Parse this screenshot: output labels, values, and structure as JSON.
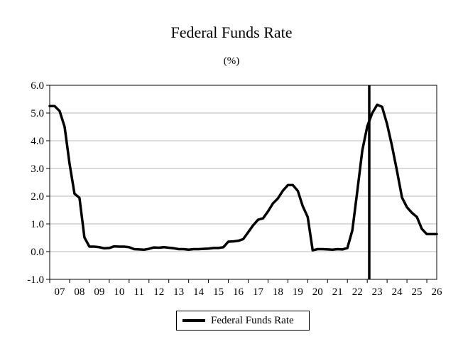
{
  "chart_data": {
    "type": "line",
    "title": "Federal Funds Rate",
    "subtitle": "(%)",
    "xlabel": "",
    "ylabel": "",
    "ylim": [
      -1.0,
      6.0
    ],
    "y_ticks": [
      "-1.0",
      "0.0",
      "1.0",
      "2.0",
      "3.0",
      "4.0",
      "5.0",
      "6.0"
    ],
    "x_ticks": [
      "07",
      "08",
      "09",
      "10",
      "11",
      "12",
      "13",
      "14",
      "15",
      "16",
      "17",
      "18",
      "19",
      "20",
      "21",
      "22",
      "23",
      "24",
      "25",
      "26"
    ],
    "xlim": [
      2007.0,
      2026.5
    ],
    "grid": "horizontal",
    "legend_position": "bottom-center",
    "vertical_marker_x": 2023.1,
    "series": [
      {
        "name": "Federal Funds Rate",
        "color": "#000000",
        "points": [
          [
            2007.0,
            5.25
          ],
          [
            2007.25,
            5.25
          ],
          [
            2007.5,
            5.07
          ],
          [
            2007.75,
            4.5
          ],
          [
            2008.0,
            3.18
          ],
          [
            2008.25,
            2.09
          ],
          [
            2008.5,
            1.94
          ],
          [
            2008.75,
            0.51
          ],
          [
            2009.0,
            0.18
          ],
          [
            2009.25,
            0.18
          ],
          [
            2009.5,
            0.16
          ],
          [
            2009.75,
            0.12
          ],
          [
            2010.0,
            0.13
          ],
          [
            2010.25,
            0.19
          ],
          [
            2010.5,
            0.18
          ],
          [
            2010.75,
            0.18
          ],
          [
            2011.0,
            0.16
          ],
          [
            2011.25,
            0.09
          ],
          [
            2011.5,
            0.08
          ],
          [
            2011.75,
            0.07
          ],
          [
            2012.0,
            0.1
          ],
          [
            2012.25,
            0.15
          ],
          [
            2012.5,
            0.14
          ],
          [
            2012.75,
            0.16
          ],
          [
            2013.0,
            0.14
          ],
          [
            2013.25,
            0.12
          ],
          [
            2013.5,
            0.09
          ],
          [
            2013.75,
            0.09
          ],
          [
            2014.0,
            0.07
          ],
          [
            2014.25,
            0.09
          ],
          [
            2014.5,
            0.09
          ],
          [
            2014.75,
            0.1
          ],
          [
            2015.0,
            0.11
          ],
          [
            2015.25,
            0.13
          ],
          [
            2015.5,
            0.13
          ],
          [
            2015.75,
            0.16
          ],
          [
            2016.0,
            0.36
          ],
          [
            2016.25,
            0.37
          ],
          [
            2016.5,
            0.39
          ],
          [
            2016.75,
            0.45
          ],
          [
            2017.0,
            0.7
          ],
          [
            2017.25,
            0.95
          ],
          [
            2017.5,
            1.15
          ],
          [
            2017.75,
            1.2
          ],
          [
            2018.0,
            1.45
          ],
          [
            2018.25,
            1.74
          ],
          [
            2018.5,
            1.92
          ],
          [
            2018.75,
            2.2
          ],
          [
            2019.0,
            2.4
          ],
          [
            2019.25,
            2.4
          ],
          [
            2019.5,
            2.19
          ],
          [
            2019.75,
            1.64
          ],
          [
            2020.0,
            1.25
          ],
          [
            2020.25,
            0.05
          ],
          [
            2020.5,
            0.09
          ],
          [
            2020.75,
            0.09
          ],
          [
            2021.0,
            0.08
          ],
          [
            2021.25,
            0.07
          ],
          [
            2021.5,
            0.09
          ],
          [
            2021.75,
            0.08
          ],
          [
            2022.0,
            0.13
          ],
          [
            2022.25,
            0.77
          ],
          [
            2022.5,
            2.19
          ],
          [
            2022.75,
            3.65
          ],
          [
            2023.0,
            4.52
          ],
          [
            2023.25,
            5.0
          ],
          [
            2023.5,
            5.3
          ],
          [
            2023.75,
            5.22
          ],
          [
            2024.0,
            4.6
          ],
          [
            2024.25,
            3.8
          ],
          [
            2024.5,
            2.9
          ],
          [
            2024.75,
            1.95
          ],
          [
            2025.0,
            1.6
          ],
          [
            2025.25,
            1.4
          ],
          [
            2025.5,
            1.25
          ],
          [
            2025.75,
            0.82
          ],
          [
            2026.0,
            0.63
          ],
          [
            2026.5,
            0.63
          ]
        ]
      }
    ]
  }
}
